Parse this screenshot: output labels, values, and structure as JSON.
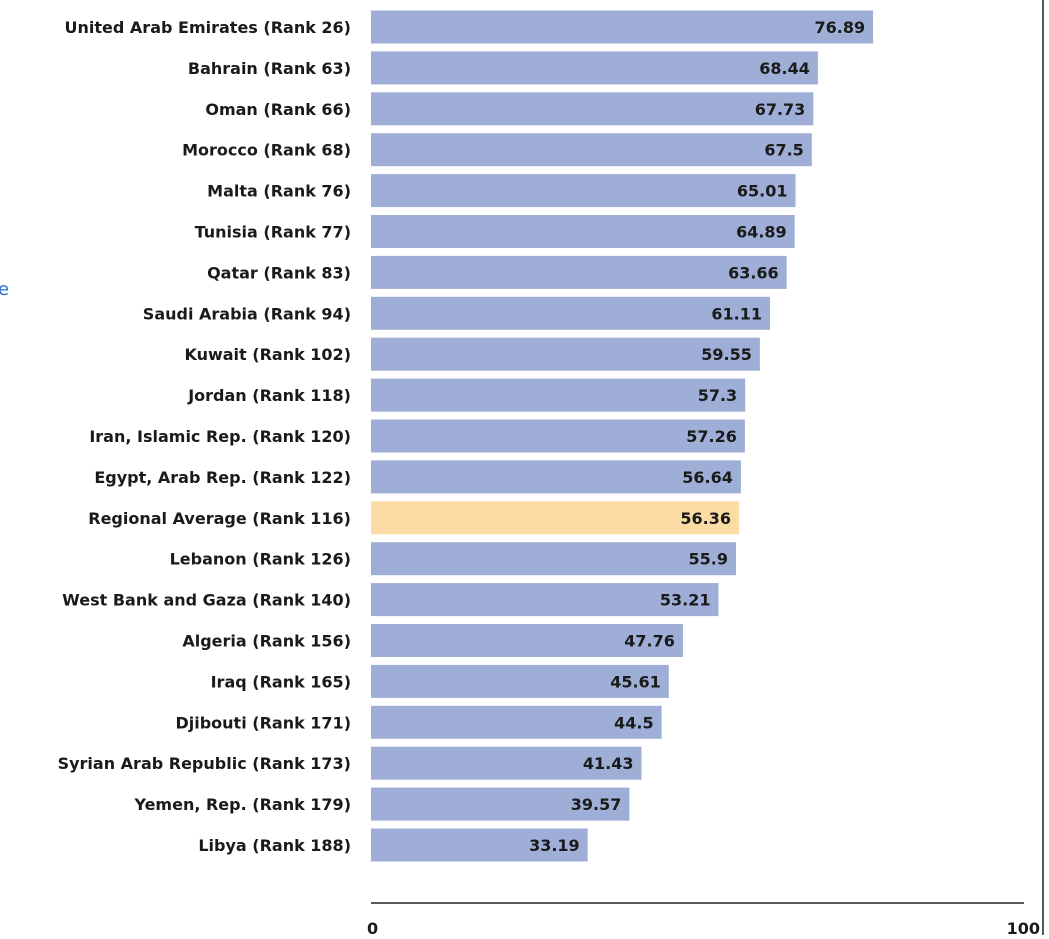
{
  "left_fragment_text": "e",
  "chart_data": {
    "type": "bar",
    "orientation": "horizontal",
    "categories": [
      "United Arab Emirates (Rank 26)",
      "Bahrain (Rank 63)",
      "Oman (Rank 66)",
      "Morocco (Rank 68)",
      "Malta (Rank 76)",
      "Tunisia (Rank 77)",
      "Qatar (Rank 83)",
      "Saudi Arabia (Rank 94)",
      "Kuwait (Rank 102)",
      "Jordan (Rank 118)",
      "Iran, Islamic Rep. (Rank 120)",
      "Egypt, Arab Rep. (Rank 122)",
      "Regional Average (Rank 116)",
      "Lebanon (Rank 126)",
      "West Bank and Gaza (Rank 140)",
      "Algeria (Rank 156)",
      "Iraq (Rank 165)",
      "Djibouti (Rank 171)",
      "Syrian Arab Republic (Rank 173)",
      "Yemen, Rep. (Rank 179)",
      "Libya (Rank 188)"
    ],
    "values": [
      76.89,
      68.44,
      67.73,
      67.5,
      65.01,
      64.89,
      63.66,
      61.11,
      59.55,
      57.3,
      57.26,
      56.64,
      56.36,
      55.9,
      53.21,
      47.76,
      45.61,
      44.5,
      41.43,
      39.57,
      33.19
    ],
    "value_labels": [
      "76.89",
      "68.44",
      "67.73",
      "67.5",
      "65.01",
      "64.89",
      "63.66",
      "61.11",
      "59.55",
      "57.3",
      "57.26",
      "56.64",
      "56.36",
      "55.9",
      "53.21",
      "47.76",
      "45.61",
      "44.5",
      "41.43",
      "39.57",
      "33.19"
    ],
    "highlight_category": "Regional Average (Rank 116)",
    "xlim": [
      0,
      100
    ],
    "xticks": [
      "0",
      "100"
    ],
    "grid": false,
    "colors": {
      "bar": "#9eaed6",
      "highlight_bar": "#fbdca4",
      "text": "#1a1a1a",
      "axis": "#222222"
    }
  }
}
